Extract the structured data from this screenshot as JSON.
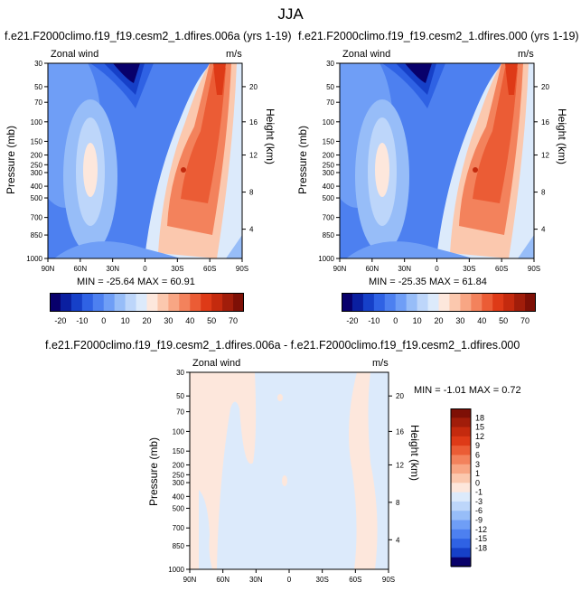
{
  "figure_title": "JJA",
  "units": "m/s",
  "panels": [
    {
      "case_title": "f.e21.F2000climo.f19_f19.cesm2_1.dfires.006a (yrs 1-19)",
      "variable": "Zonal wind",
      "min_max": "MIN = -25.64   MAX = 60.91"
    },
    {
      "case_title": "f.e21.F2000climo.f19_f19.cesm2_1.dfires.000 (yrs 1-19)",
      "variable": "Zonal wind",
      "min_max": "MIN = -25.35   MAX = 61.84"
    },
    {
      "case_title": "f.e21.F2000climo.f19_f19.cesm2_1.dfires.006a - f.e21.F2000climo.f19_f19.cesm2_1.dfires.000",
      "variable": "Zonal wind",
      "min_max": "MIN = -1.01   MAX =  0.72"
    }
  ],
  "chart_data": {
    "type": "heatmap",
    "xlabel": "",
    "ylabel": "Pressure (mb)",
    "y2label": "Height (km)",
    "x_ticks": [
      "90N",
      "60N",
      "30N",
      "0",
      "30S",
      "60S",
      "90S"
    ],
    "y_ticks": [
      "30",
      "50",
      "70",
      "100",
      "150",
      "200",
      "250",
      "300",
      "400",
      "500",
      "700",
      "850",
      "1000"
    ],
    "y2_ticks": [
      "20",
      "16",
      "12",
      "8",
      "4"
    ],
    "main_colorbar": {
      "labels": [
        "-20",
        "-10",
        "0",
        "10",
        "20",
        "30",
        "40",
        "50",
        "70"
      ],
      "colors": [
        "#08006b",
        "#0a1fa0",
        "#1640c8",
        "#2f62e4",
        "#4d80f0",
        "#6f9ef6",
        "#97bdf8",
        "#bdd6fa",
        "#dceafb",
        "#fde7dc",
        "#fbc8ae",
        "#f8a684",
        "#f3825c",
        "#eb5c35",
        "#de3a17",
        "#c42a0e",
        "#a11d0a",
        "#7e1006"
      ]
    },
    "diff_colorbar": {
      "labels": [
        "18",
        "15",
        "12",
        "9",
        "6",
        "3",
        "1",
        "0",
        "-1",
        "-3",
        "-6",
        "-9",
        "-12",
        "-15",
        "-18"
      ],
      "colors": [
        "#7e1006",
        "#a11d0a",
        "#c42a0e",
        "#de3a17",
        "#eb5c35",
        "#f3825c",
        "#f8a684",
        "#fbc8ae",
        "#fde7dc",
        "#dceafb",
        "#bdd6fa",
        "#97bdf8",
        "#6f9ef6",
        "#4d80f0",
        "#2f62e4",
        "#1640c8",
        "#08006b"
      ]
    },
    "palette": {
      "pos_small": "#fde7dc",
      "neg_small": "#dceafb"
    }
  }
}
